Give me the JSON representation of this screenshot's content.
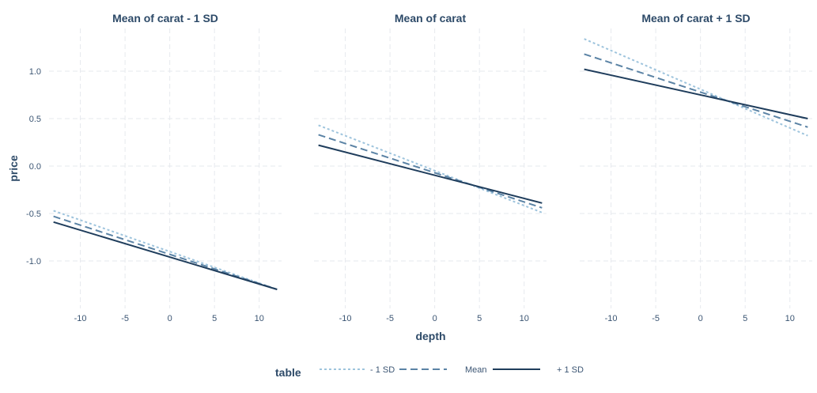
{
  "chart_data": {
    "type": "line",
    "ylabel": "price",
    "xlabel": "depth",
    "xlim": [
      -13.5,
      12.5
    ],
    "ylim": [
      -1.5,
      1.45
    ],
    "x_ticks": [
      -10,
      -5,
      0,
      5,
      10
    ],
    "y_ticks": [
      -1.0,
      -0.5,
      0.0,
      0.5,
      1.0
    ],
    "y_tick_labels": [
      "-1.0",
      "-0.5",
      "0.0",
      "0.5",
      "1.0"
    ],
    "grid": true,
    "legend": {
      "title": "table",
      "position": "bottom",
      "entries": [
        {
          "label": "- 1 SD",
          "color": "#9ec4dd",
          "dash": "3 3"
        },
        {
          "label": "Mean",
          "color": "#5b83a5",
          "dash": "9 5"
        },
        {
          "label": "+ 1 SD",
          "color": "#1f3d5c",
          "dash": ""
        }
      ]
    },
    "panels": [
      {
        "title": "Mean of carat - 1 SD",
        "series": [
          {
            "name": "- 1 SD",
            "x": [
              -13,
              12
            ],
            "y": [
              -0.47,
              -1.3
            ]
          },
          {
            "name": "Mean",
            "x": [
              -13,
              12
            ],
            "y": [
              -0.53,
              -1.3
            ]
          },
          {
            "name": "+ 1 SD",
            "x": [
              -13,
              12
            ],
            "y": [
              -0.59,
              -1.3
            ]
          }
        ]
      },
      {
        "title": "Mean of carat",
        "series": [
          {
            "name": "- 1 SD",
            "x": [
              -13,
              12
            ],
            "y": [
              0.43,
              -0.49
            ]
          },
          {
            "name": "Mean",
            "x": [
              -13,
              12
            ],
            "y": [
              0.33,
              -0.44
            ]
          },
          {
            "name": "+ 1 SD",
            "x": [
              -13,
              12
            ],
            "y": [
              0.22,
              -0.39
            ]
          }
        ]
      },
      {
        "title": "Mean of carat + 1 SD",
        "series": [
          {
            "name": "- 1 SD",
            "x": [
              -13,
              12
            ],
            "y": [
              1.34,
              0.32
            ]
          },
          {
            "name": "Mean",
            "x": [
              -13,
              12
            ],
            "y": [
              1.18,
              0.41
            ]
          },
          {
            "name": "+ 1 SD",
            "x": [
              -13,
              12
            ],
            "y": [
              1.02,
              0.5
            ]
          }
        ]
      }
    ]
  }
}
